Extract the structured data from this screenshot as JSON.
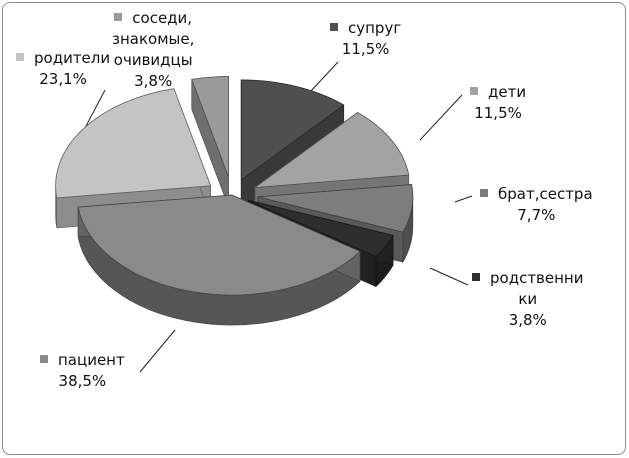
{
  "chart_data": {
    "type": "pie",
    "title": "",
    "style": "3d-exploded",
    "legend": "none",
    "slices": [
      {
        "label": "супруг",
        "value": 11.5,
        "pct_text": "11,5%",
        "color": "#4f4f4f"
      },
      {
        "label": "дети",
        "value": 11.5,
        "pct_text": "11,5%",
        "color": "#a3a3a3"
      },
      {
        "label": "брат,сестра",
        "value": 7.7,
        "pct_text": "7,7%",
        "color": "#7d7d7d"
      },
      {
        "label": "родственники",
        "value": 3.8,
        "pct_text": "3,8%",
        "color": "#2e2e2e"
      },
      {
        "label": "пациент",
        "value": 38.5,
        "pct_text": "38,5%",
        "color": "#8a8a8a"
      },
      {
        "label": "родители",
        "value": 23.1,
        "pct_text": "23,1%",
        "color": "#c4c4c4"
      },
      {
        "label": "соседи, знакомые, очивидцы",
        "value": 3.8,
        "pct_text": "3,8%",
        "color": "#9a9a9a"
      }
    ],
    "label_lines": [
      [
        "супруг"
      ],
      [
        "дети"
      ],
      [
        "брат,сестра"
      ],
      [
        "родственни",
        "ки"
      ],
      [
        "пациент"
      ],
      [
        "родители"
      ],
      [
        "соседи,",
        "знакомые,",
        "очивидцы"
      ]
    ]
  }
}
